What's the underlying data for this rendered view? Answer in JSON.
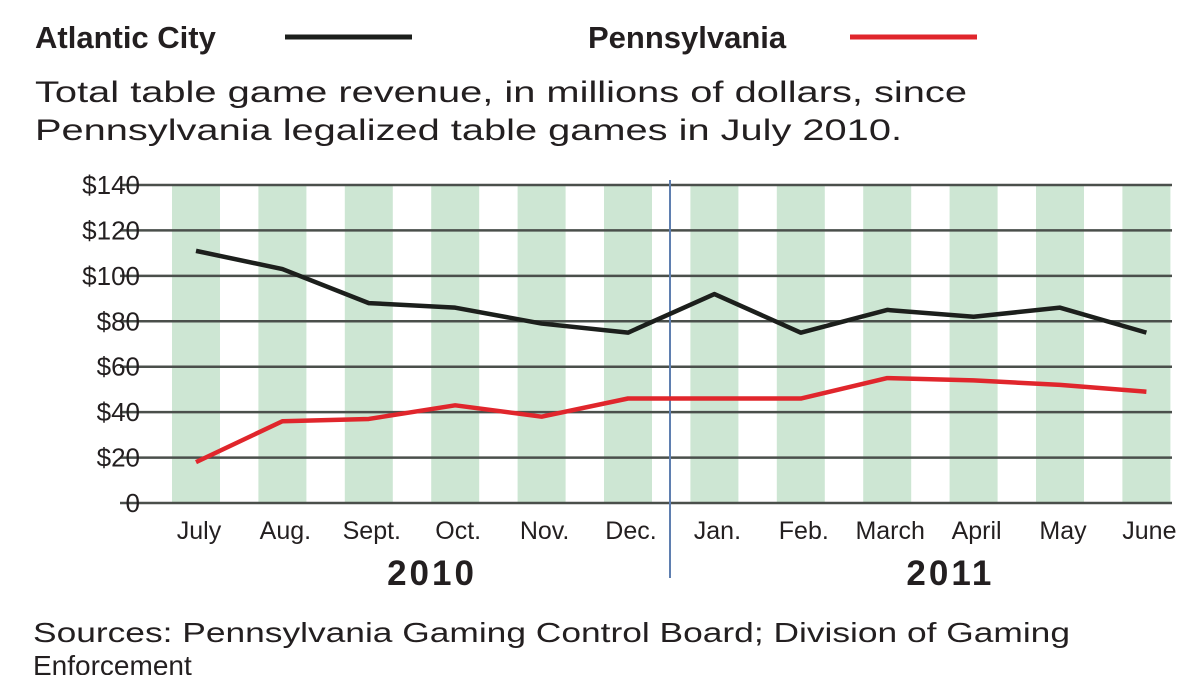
{
  "chart_data": {
    "type": "line",
    "subtitle_lines": [
      "Total table game revenue, in millions of dollars, since",
      "Pennsylvania legalized table games in July 2010."
    ],
    "categories": [
      "July",
      "Aug.",
      "Sept.",
      "Oct.",
      "Nov.",
      "Dec.",
      "Jan.",
      "Feb.",
      "March",
      "April",
      "May",
      "June"
    ],
    "year_groups": [
      {
        "label": "2010",
        "span": [
          0,
          5
        ]
      },
      {
        "label": "2011",
        "span": [
          6,
          11
        ]
      }
    ],
    "ylim": [
      0,
      140
    ],
    "yticks": [
      0,
      20,
      40,
      60,
      80,
      100,
      120,
      140
    ],
    "ytick_labels": [
      "0",
      "$20",
      "$40",
      "$60",
      "$80",
      "$100",
      "$120",
      "$140"
    ],
    "grid": true,
    "legend_placement": "top",
    "series": [
      {
        "name": "Atlantic City",
        "color": "#1c1f1c",
        "values": [
          111,
          103,
          88,
          86,
          79,
          75,
          92,
          75,
          85,
          82,
          86,
          75
        ]
      },
      {
        "name": "Pennsylvania",
        "color": "#e0262c",
        "values": [
          18,
          36,
          37,
          43,
          38,
          46,
          46,
          46,
          55,
          54,
          52,
          49
        ]
      }
    ],
    "stripe_color": "#cde6d3",
    "divider_color": "#5f7fb0",
    "source_lines": [
      "Sources: Pennsylvania Gaming Control Board; Division of Gaming",
      "Enforcement"
    ]
  }
}
